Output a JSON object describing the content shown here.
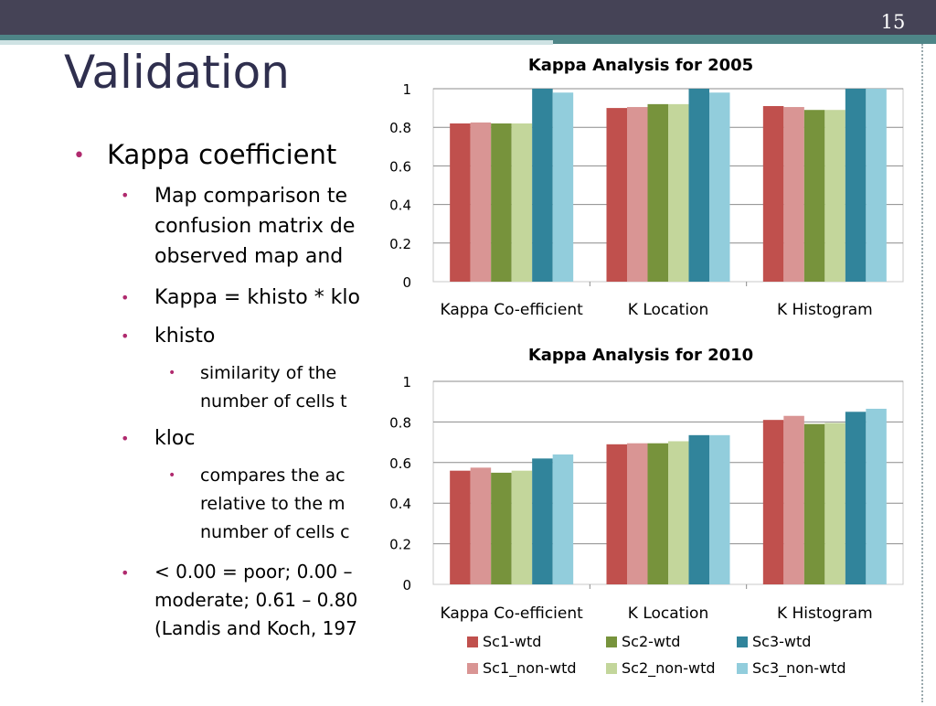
{
  "slide": {
    "number": "15",
    "title": "Validation",
    "bullets": [
      {
        "text": "Kappa coefficient"
      },
      {
        "text": "Map comparison te",
        "text2": "confusion matrix de",
        "text3": "observed map and"
      },
      {
        "text": "Kappa = khisto * klo"
      },
      {
        "text": "khisto"
      },
      {
        "text": "similarity of the",
        "text2": "number of cells t"
      },
      {
        "text": "kloc"
      },
      {
        "text": "compares the ac",
        "text2": "relative to the m",
        "text3": "number of cells c"
      },
      {
        "text": "< 0.00 = poor; 0.00 –",
        "text2": "moderate; 0.61 – 0.80",
        "text3": "(Landis and Koch, 197"
      }
    ]
  },
  "colors": {
    "Sc1-wtd": "#c0504d",
    "Sc1_non-wtd": "#d99594",
    "Sc2-wtd": "#77933c",
    "Sc2_non-wtd": "#c3d69b",
    "Sc3-wtd": "#31849b",
    "Sc3_non-wtd": "#92cddc",
    "accent_bullet": "#b02a6e",
    "title_color": "#2f2f4e"
  },
  "chart_data": [
    {
      "type": "bar",
      "title": "Kappa Analysis for 2005",
      "categories": [
        "Kappa Co-efficient",
        "K Location",
        "K Histogram"
      ],
      "ylim": [
        0,
        1
      ],
      "yticks": [
        "0",
        "0.2",
        "0.4",
        "0.6",
        "0.8",
        "1"
      ],
      "grid": true,
      "series": [
        {
          "name": "Sc1-wtd",
          "values": [
            0.82,
            0.9,
            0.91
          ]
        },
        {
          "name": "Sc1_non-wtd",
          "values": [
            0.825,
            0.905,
            0.905
          ]
        },
        {
          "name": "Sc2-wtd",
          "values": [
            0.82,
            0.92,
            0.89
          ]
        },
        {
          "name": "Sc2_non-wtd",
          "values": [
            0.82,
            0.92,
            0.89
          ]
        },
        {
          "name": "Sc3-wtd",
          "values": [
            1.0,
            1.0,
            1.0
          ]
        },
        {
          "name": "Sc3_non-wtd",
          "values": [
            0.98,
            0.98,
            1.0
          ]
        }
      ]
    },
    {
      "type": "bar",
      "title": "Kappa Analysis for 2010",
      "categories": [
        "Kappa Co-efficient",
        "K Location",
        "K Histogram"
      ],
      "ylim": [
        0,
        1
      ],
      "yticks": [
        "0",
        "0.2",
        "0.4",
        "0.6",
        "0.8",
        "1"
      ],
      "grid": true,
      "legend": "bottom",
      "series": [
        {
          "name": "Sc1-wtd",
          "values": [
            0.56,
            0.69,
            0.81
          ]
        },
        {
          "name": "Sc1_non-wtd",
          "values": [
            0.575,
            0.695,
            0.83
          ]
        },
        {
          "name": "Sc2-wtd",
          "values": [
            0.55,
            0.695,
            0.79
          ]
        },
        {
          "name": "Sc2_non-wtd",
          "values": [
            0.56,
            0.705,
            0.795
          ]
        },
        {
          "name": "Sc3-wtd",
          "values": [
            0.62,
            0.735,
            0.85
          ]
        },
        {
          "name": "Sc3_non-wtd",
          "values": [
            0.64,
            0.735,
            0.865
          ]
        }
      ]
    }
  ],
  "legend": {
    "rows": [
      [
        "Sc1-wtd",
        "Sc2-wtd",
        "Sc3-wtd"
      ],
      [
        "Sc1_non-wtd",
        "Sc2_non-wtd",
        "Sc3_non-wtd"
      ]
    ]
  }
}
